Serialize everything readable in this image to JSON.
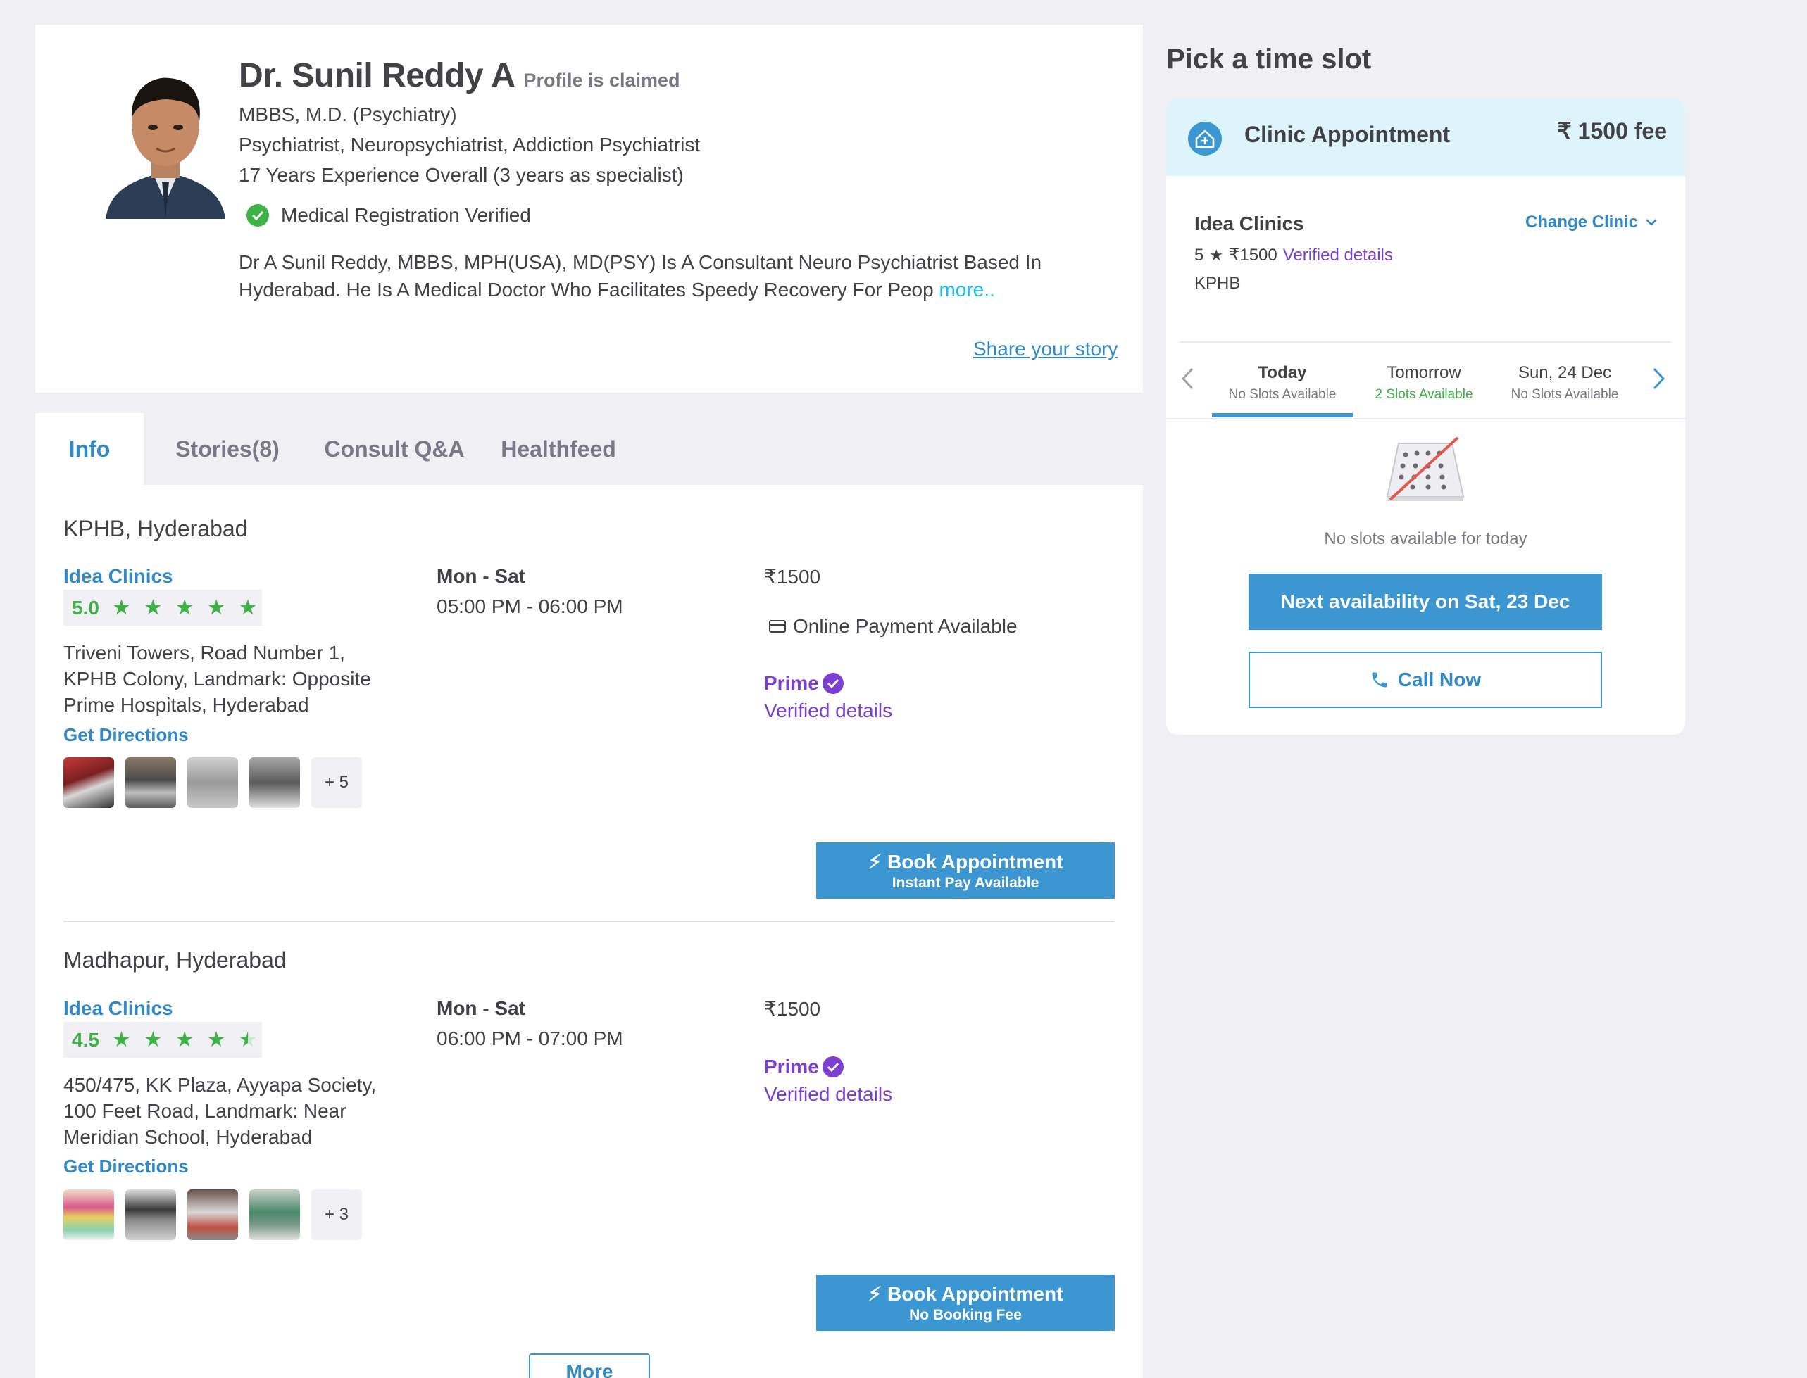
{
  "profile": {
    "name": "Dr. Sunil Reddy A",
    "claimed": "Profile is claimed",
    "degrees": "MBBS, M.D. (Psychiatry)",
    "specialties": "Psychiatrist, Neuropsychiatrist, Addiction Psychiatrist",
    "experience": "17 Years Experience Overall  (3 years as specialist)",
    "registration": "Medical Registration Verified",
    "about": "Dr A Sunil Reddy, MBBS, MPH(USA), MD(PSY) Is A Consultant Neuro Psychiatrist Based In Hyderabad. He Is A Medical Doctor Who Facilitates Speedy Recovery For Peop",
    "more_link": "more..",
    "share_story": "Share your story"
  },
  "tabs": [
    {
      "label": "Info"
    },
    {
      "label": "Stories(8)"
    },
    {
      "label": "Consult Q&A"
    },
    {
      "label": "Healthfeed"
    }
  ],
  "locations": [
    {
      "title": "KPHB, Hyderabad",
      "clinic": "Idea Clinics",
      "rating": "5.0",
      "rating_value": 5.0,
      "address": "Triveni Towers, Road Number 1, KPHB Colony, Landmark: Opposite Prime Hospitals, Hyderabad",
      "directions": "Get Directions",
      "more_photos": "+ 5",
      "days": "Mon - Sat",
      "hours": "05:00 PM - 06:00 PM",
      "fee": "₹1500",
      "online_payment": "Online Payment Available",
      "prime": "Prime",
      "verified": "Verified details",
      "book_label": "Book Appointment",
      "book_sub": "Instant Pay Available"
    },
    {
      "title": "Madhapur, Hyderabad",
      "clinic": "Idea Clinics",
      "rating": "4.5",
      "rating_value": 4.5,
      "address": "450/475, KK Plaza, Ayyapa Society, 100 Feet Road, Landmark: Near Meridian School, Hyderabad",
      "directions": "Get Directions",
      "more_photos": "+ 3",
      "days": "Mon - Sat",
      "hours": "06:00 PM - 07:00 PM",
      "fee": "₹1500",
      "prime": "Prime",
      "verified": "Verified details",
      "book_label": "Book Appointment",
      "book_sub": "No Booking Fee"
    }
  ],
  "more_button": "More",
  "slot_panel": {
    "title": "Pick a time slot",
    "appointment_type": "Clinic Appointment",
    "fee": "₹ 1500 fee",
    "clinic_name": "Idea Clinics",
    "change_clinic": "Change Clinic",
    "clinic_rating": "5",
    "clinic_fee": "₹1500",
    "clinic_verified": "Verified details",
    "clinic_area": "KPHB",
    "days": [
      {
        "name": "Today",
        "status": "No Slots Available"
      },
      {
        "name": "Tomorrow",
        "status": "2 Slots Available"
      },
      {
        "name": "Sun, 24 Dec",
        "status": "No Slots Available"
      }
    ],
    "no_slots_text": "No slots available for today",
    "next_availability": "Next availability on Sat, 23 Dec",
    "call_now": "Call Now"
  },
  "colors": {
    "primary_blue": "#3b96d1",
    "link_blue": "#3189c8",
    "rating_green": "#3eb247",
    "prime_purple": "#7d3fcf"
  }
}
